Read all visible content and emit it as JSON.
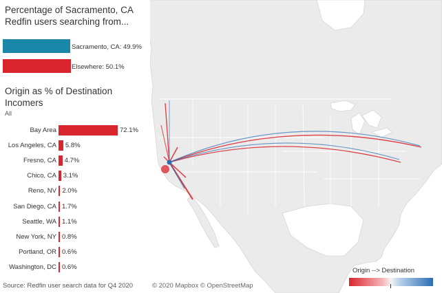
{
  "share": {
    "title": "Percentage of Sacramento, CA Redfin users searching from...",
    "items": [
      {
        "label": "Sacramento, CA: 49.9%",
        "value": 49.9,
        "color": "#1a86a8"
      },
      {
        "label": "Elsewhere: 50.1%",
        "value": 50.1,
        "color": "#d9262e"
      }
    ]
  },
  "origin": {
    "title": "Origin as % of Destination Incomers",
    "filter": "All",
    "rows": [
      {
        "category": "Bay Area",
        "value_label": "72.1%",
        "value": 72.1
      },
      {
        "category": "Los Angeles, CA",
        "value_label": "5.8%",
        "value": 5.8
      },
      {
        "category": "Fresno, CA",
        "value_label": "4.7%",
        "value": 4.7
      },
      {
        "category": "Chico, CA",
        "value_label": "3.1%",
        "value": 3.1
      },
      {
        "category": "Reno, NV",
        "value_label": "2.0%",
        "value": 2.0
      },
      {
        "category": "San Diego, CA",
        "value_label": "1.7%",
        "value": 1.7
      },
      {
        "category": "Seattle, WA",
        "value_label": "1.1%",
        "value": 1.1
      },
      {
        "category": "New York, NY",
        "value_label": "0.8%",
        "value": 0.8
      },
      {
        "category": "Portland, OR",
        "value_label": "0.6%",
        "value": 0.6
      },
      {
        "category": "Washington, DC",
        "value_label": "0.6%",
        "value": 0.6
      }
    ]
  },
  "footer": {
    "source": "Source: Redfin user search data for Q4 2020",
    "credit": "© 2020 Mapbox © OpenStreetMap"
  },
  "legend": {
    "title": "Origin --> Destination"
  },
  "colors": {
    "origin_red": "#d9262e",
    "destination_blue": "#2d6db4",
    "sacramento_teal": "#1a86a8",
    "land": "#ebebeb",
    "water": "#ffffff"
  }
}
